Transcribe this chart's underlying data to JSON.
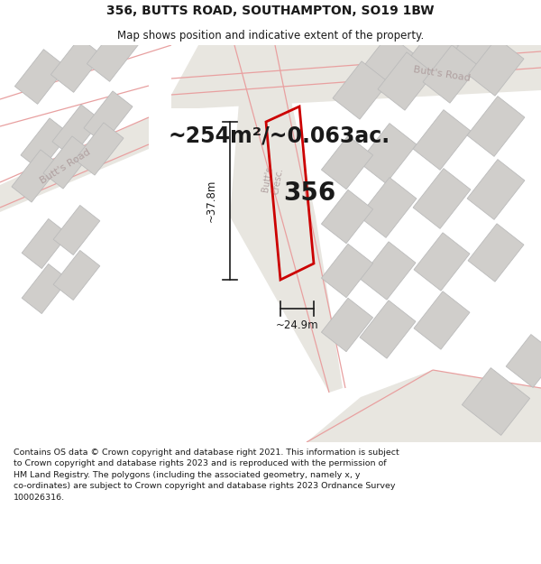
{
  "title": "356, BUTTS ROAD, SOUTHAMPTON, SO19 1BW",
  "subtitle": "Map shows position and indicative extent of the property.",
  "area_text": "~254m²/~0.063ac.",
  "property_number": "356",
  "dim_width": "~24.9m",
  "dim_height": "~37.8m",
  "footer": "Contains OS data © Crown copyright and database right 2021. This information is subject to Crown copyright and database rights 2023 and is reproduced with the permission of HM Land Registry. The polygons (including the associated geometry, namely x, y co-ordinates) are subject to Crown copyright and database rights 2023 Ordnance Survey 100026316.",
  "map_bg": "#f0eeeb",
  "road_fill": "#e8e6e2",
  "building_fill": "#d0cecb",
  "building_edge": "#bbbbbb",
  "road_line_color": "#e8a0a0",
  "highlight_color": "#cc0000",
  "road_label_color": "#b0a0a0",
  "text_color": "#1a1a1a",
  "dim_color": "#1a1a1a",
  "title_fontsize": 10,
  "subtitle_fontsize": 8.5,
  "area_fontsize": 17,
  "prop_fontsize": 20,
  "road_label_fontsize": 8,
  "dim_fontsize": 8.5,
  "footer_fontsize": 6.8
}
